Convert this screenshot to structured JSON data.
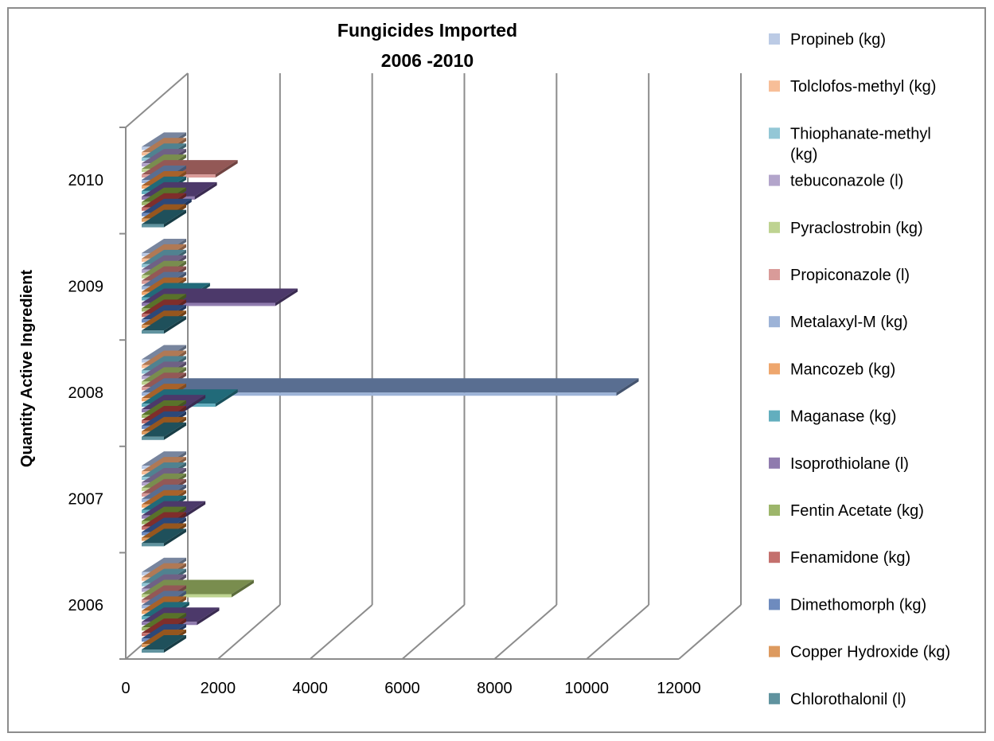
{
  "chart_data": {
    "type": "bar",
    "orientation": "horizontal",
    "style": "3d-clustered",
    "title": [
      "Fungicides Imported",
      "2006 -2010"
    ],
    "ylabel": "Quantity Active Ingredient",
    "xlabel": "",
    "categories": [
      "2006",
      "2007",
      "2008",
      "2009",
      "2010"
    ],
    "xlim": [
      0,
      12000
    ],
    "xticks": [
      "0",
      "2000",
      "4000",
      "6000",
      "8000",
      "10000",
      "12000"
    ],
    "grid": true,
    "legend_position": "right",
    "series": [
      {
        "name": "Chlorothalonil (l)",
        "color": "#2b6f7f",
        "values": [
          0,
          50,
          0,
          0,
          0
        ]
      },
      {
        "name": "Copper Hydroxide (kg)",
        "color": "#d1782a",
        "values": [
          0,
          0,
          0,
          0,
          0
        ]
      },
      {
        "name": "Dimethomorph (kg)",
        "color": "#3d64a8",
        "values": [
          0,
          0,
          0,
          0,
          600
        ]
      },
      {
        "name": "Fenamidone (kg)",
        "color": "#b0403c",
        "values": [
          0,
          0,
          0,
          0,
          300
        ]
      },
      {
        "name": "Fentin Acetate (kg)",
        "color": "#7c9e3a",
        "values": [
          0,
          0,
          0,
          0,
          0
        ]
      },
      {
        "name": "Isoprothiolane (l)",
        "color": "#6a4f93",
        "values": [
          1200,
          900,
          900,
          2900,
          1150
        ]
      },
      {
        "name": "Maganase (kg)",
        "color": "#2e93a8",
        "values": [
          550,
          0,
          1600,
          1000,
          0
        ]
      },
      {
        "name": "Mancozeb (kg)",
        "color": "#e8883c",
        "values": [
          0,
          0,
          0,
          0,
          0
        ]
      },
      {
        "name": "Metalaxyl-M (kg)",
        "color": "#7c99c9",
        "values": [
          0,
          0,
          10300,
          0,
          0
        ]
      },
      {
        "name": "Propiconazole (l)",
        "color": "#cc7a77",
        "values": [
          0,
          0,
          0,
          0,
          1600
        ]
      },
      {
        "name": "Pyraclostrobin (kg)",
        "color": "#a8c46c",
        "values": [
          1950,
          0,
          0,
          0,
          0
        ]
      },
      {
        "name": "tebuconazole (l)",
        "color": "#9a87b9",
        "values": [
          0,
          0,
          0,
          0,
          0
        ]
      },
      {
        "name": "Thiophanate-methyl (kg)",
        "color": "#6fb4c8",
        "values": [
          0,
          0,
          0,
          0,
          0
        ]
      },
      {
        "name": "Tolclofos-methyl (kg)",
        "color": "#f4a876",
        "values": [
          0,
          0,
          0,
          0,
          0
        ]
      },
      {
        "name": "Propineb (kg)",
        "color": "#a6b9dc",
        "values": [
          0,
          0,
          0,
          0,
          0
        ]
      }
    ],
    "legend_order": [
      "Propineb (kg)",
      "Tolclofos-methyl (kg)",
      "Thiophanate-methyl (kg)",
      "tebuconazole (l)",
      "Pyraclostrobin (kg)",
      "Propiconazole (l)",
      "Metalaxyl-M (kg)",
      "Mancozeb (kg)",
      "Maganase (kg)",
      "Isoprothiolane (l)",
      "Fentin Acetate (kg)",
      "Fenamidone (kg)",
      "Dimethomorph (kg)",
      "Copper Hydroxide (kg)",
      "Chlorothalonil (l)"
    ]
  }
}
